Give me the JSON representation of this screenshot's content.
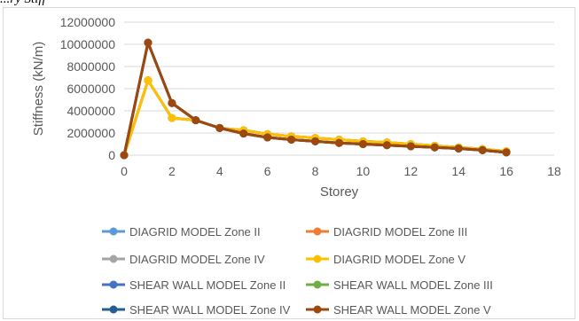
{
  "caption": "...ry Stiff",
  "chart_data": {
    "type": "line",
    "xlabel": "Storey",
    "ylabel": "Stiffness (kN/m)",
    "xlim": [
      0,
      18
    ],
    "ylim": [
      0,
      12000000
    ],
    "x_ticks": [
      "0",
      "2",
      "4",
      "6",
      "8",
      "10",
      "12",
      "14",
      "16",
      "18"
    ],
    "y_ticks": [
      "0",
      "2000000",
      "4000000",
      "6000000",
      "8000000",
      "10000000",
      "12000000"
    ],
    "x": [
      0,
      1,
      2,
      3,
      4,
      5,
      6,
      7,
      8,
      9,
      10,
      11,
      12,
      13,
      14,
      15,
      16
    ],
    "grid": "horizontal",
    "legend_position": "bottom",
    "series": [
      {
        "name": "DIAGRID MODEL Zone II",
        "color": "#5B9BD5",
        "values": [
          0,
          6750000,
          3350000,
          3150000,
          2450000,
          2250000,
          1900000,
          1700000,
          1550000,
          1400000,
          1250000,
          1150000,
          1000000,
          850000,
          700000,
          550000,
          350000
        ]
      },
      {
        "name": "DIAGRID MODEL Zone III",
        "color": "#ED7D31",
        "values": [
          0,
          6750000,
          3350000,
          3150000,
          2450000,
          2250000,
          1900000,
          1700000,
          1550000,
          1400000,
          1250000,
          1150000,
          1000000,
          850000,
          700000,
          550000,
          350000
        ]
      },
      {
        "name": "DIAGRID MODEL Zone IV",
        "color": "#A5A5A5",
        "values": [
          0,
          6750000,
          3350000,
          3150000,
          2450000,
          2250000,
          1900000,
          1700000,
          1550000,
          1400000,
          1250000,
          1150000,
          1000000,
          850000,
          700000,
          550000,
          350000
        ]
      },
      {
        "name": "DIAGRID MODEL Zone V",
        "color": "#FFC000",
        "values": [
          0,
          6750000,
          3350000,
          3150000,
          2450000,
          2250000,
          1900000,
          1700000,
          1550000,
          1400000,
          1250000,
          1150000,
          1000000,
          850000,
          700000,
          550000,
          350000
        ]
      },
      {
        "name": "SHEAR WALL MODEL Zone II",
        "color": "#4472C4",
        "values": [
          0,
          10150000,
          4700000,
          3150000,
          2450000,
          1950000,
          1600000,
          1400000,
          1250000,
          1100000,
          1000000,
          900000,
          800000,
          700000,
          600000,
          450000,
          250000
        ]
      },
      {
        "name": "SHEAR WALL MODEL Zone III",
        "color": "#70AD47",
        "values": [
          0,
          10150000,
          4700000,
          3150000,
          2450000,
          1950000,
          1600000,
          1400000,
          1250000,
          1100000,
          1000000,
          900000,
          800000,
          700000,
          600000,
          450000,
          250000
        ]
      },
      {
        "name": "SHEAR WALL MODEL Zone IV",
        "color": "#255E91",
        "values": [
          0,
          10150000,
          4700000,
          3150000,
          2450000,
          1950000,
          1600000,
          1400000,
          1250000,
          1100000,
          1000000,
          900000,
          800000,
          700000,
          600000,
          450000,
          250000
        ]
      },
      {
        "name": "SHEAR WALL MODEL Zone V",
        "color": "#9E480E",
        "values": [
          0,
          10150000,
          4700000,
          3150000,
          2450000,
          1950000,
          1600000,
          1400000,
          1250000,
          1100000,
          1000000,
          900000,
          800000,
          700000,
          600000,
          450000,
          250000
        ]
      }
    ]
  }
}
